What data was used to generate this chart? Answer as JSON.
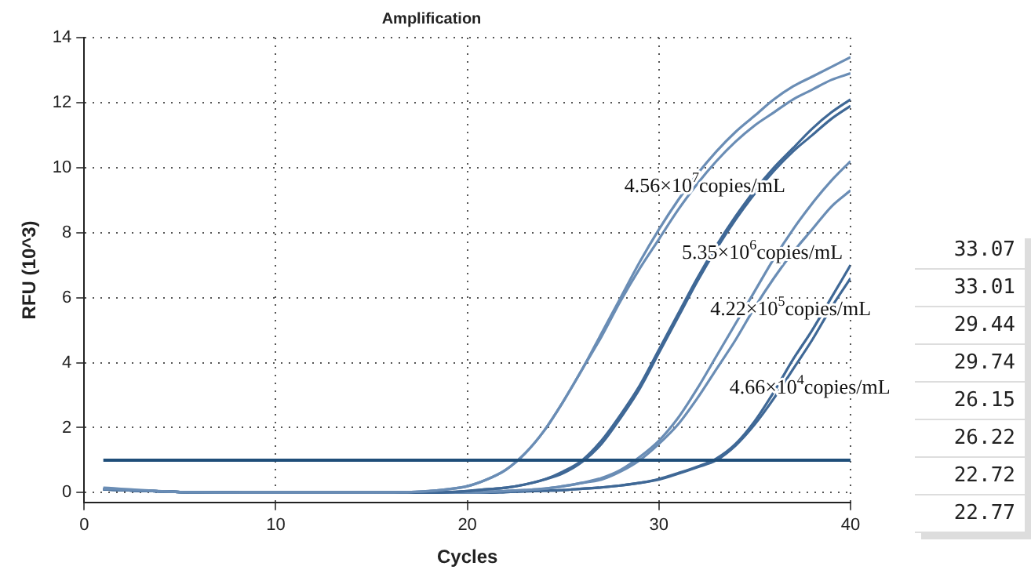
{
  "chart_data": {
    "type": "line",
    "title": "Amplification",
    "xlabel": "Cycles",
    "ylabel": "RFU (10^3)",
    "xlim": [
      0,
      40
    ],
    "xticks": [
      0,
      10,
      20,
      30,
      40
    ],
    "ylim": [
      -0.3,
      14
    ],
    "yticks": [
      0,
      2,
      4,
      6,
      8,
      10,
      12,
      14
    ],
    "grid": true,
    "legend": false,
    "marker": "none",
    "line_style": "solid",
    "x": [
      1,
      5,
      10,
      15,
      18,
      20,
      21,
      22,
      23,
      24,
      25,
      26,
      27,
      28,
      29,
      30,
      31,
      32,
      33,
      34,
      35,
      36,
      37,
      38,
      39,
      40
    ],
    "series": [
      {
        "color": "#6a8db5",
        "values": [
          0.15,
          0.02,
          0,
          0,
          0.05,
          0.2,
          0.4,
          0.7,
          1.2,
          1.9,
          2.8,
          3.8,
          4.9,
          6.0,
          7.1,
          8.1,
          9.0,
          9.8,
          10.5,
          11.1,
          11.6,
          12.1,
          12.5,
          12.8,
          13.1,
          13.4
        ]
      },
      {
        "color": "#6a8db5",
        "values": [
          0.12,
          0.02,
          0,
          0,
          0.05,
          0.2,
          0.4,
          0.7,
          1.2,
          1.9,
          2.8,
          3.8,
          4.8,
          5.9,
          6.9,
          7.8,
          8.7,
          9.5,
          10.2,
          10.8,
          11.3,
          11.7,
          12.1,
          12.4,
          12.7,
          12.9
        ]
      },
      {
        "color": "#3f6896",
        "values": [
          0.1,
          0.02,
          0,
          0,
          0,
          0.05,
          0.1,
          0.15,
          0.25,
          0.4,
          0.65,
          1.0,
          1.6,
          2.4,
          3.3,
          4.4,
          5.5,
          6.6,
          7.6,
          8.5,
          9.3,
          10.0,
          10.6,
          11.2,
          11.7,
          12.1
        ]
      },
      {
        "color": "#3f6896",
        "values": [
          0.1,
          0.02,
          0,
          0,
          0,
          0.05,
          0.1,
          0.15,
          0.25,
          0.4,
          0.6,
          0.95,
          1.5,
          2.3,
          3.2,
          4.3,
          5.4,
          6.5,
          7.5,
          8.4,
          9.2,
          9.9,
          10.5,
          11.0,
          11.5,
          11.9
        ]
      },
      {
        "color": "#6a8db5",
        "values": [
          0.1,
          0.02,
          0,
          0,
          0,
          0,
          0.02,
          0.05,
          0.08,
          0.12,
          0.2,
          0.3,
          0.45,
          0.7,
          1.1,
          1.6,
          2.3,
          3.2,
          4.2,
          5.2,
          6.2,
          7.2,
          8.1,
          8.9,
          9.6,
          10.2
        ]
      },
      {
        "color": "#6a8db5",
        "values": [
          0.1,
          0.02,
          0,
          0,
          0,
          0,
          0.02,
          0.05,
          0.08,
          0.12,
          0.2,
          0.3,
          0.4,
          0.65,
          1.0,
          1.5,
          2.1,
          2.9,
          3.8,
          4.7,
          5.7,
          6.6,
          7.4,
          8.1,
          8.8,
          9.3
        ]
      },
      {
        "color": "#3f6896",
        "values": [
          0.1,
          0.02,
          0,
          0,
          0,
          0,
          0,
          0.02,
          0.04,
          0.06,
          0.08,
          0.12,
          0.16,
          0.22,
          0.3,
          0.42,
          0.6,
          0.8,
          1.05,
          1.5,
          2.2,
          3.1,
          4.1,
          5.0,
          6.0,
          7.0
        ]
      },
      {
        "color": "#3f6896",
        "values": [
          0.1,
          0.02,
          0,
          0,
          0,
          0,
          0,
          0.02,
          0.04,
          0.06,
          0.08,
          0.12,
          0.16,
          0.22,
          0.3,
          0.4,
          0.58,
          0.78,
          1.0,
          1.45,
          2.1,
          2.9,
          3.8,
          4.7,
          5.7,
          6.6
        ]
      }
    ],
    "ref_lines": [
      {
        "axis": "y",
        "value": 1,
        "color": "#1f4e79"
      }
    ],
    "annotations": [
      "4.56×10$^{7}$copies/mL",
      "5.35×10$^{6}$copies/mL",
      "4.22×10$^{5}$copies/mL",
      "4.66×10$^{4}$copies/mL",
      "33.07",
      "33.01",
      "29.44",
      "29.74",
      "26.15",
      "26.22",
      "22.72",
      "22.77"
    ]
  }
}
